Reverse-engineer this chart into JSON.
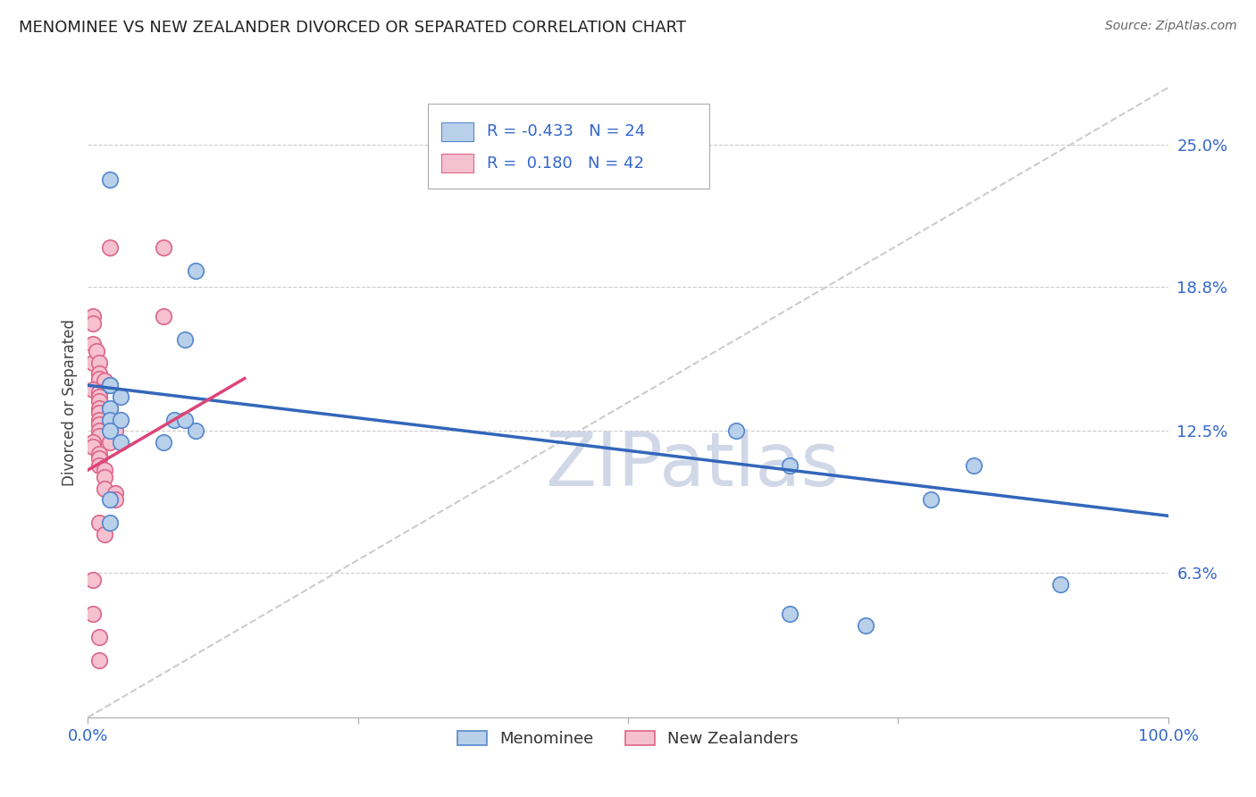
{
  "title": "MENOMINEE VS NEW ZEALANDER DIVORCED OR SEPARATED CORRELATION CHART",
  "source": "Source: ZipAtlas.com",
  "ylabel": "Divorced or Separated",
  "xlim": [
    0.0,
    1.0
  ],
  "ylim": [
    0.0,
    0.275
  ],
  "yticks": [
    0.0,
    0.063,
    0.125,
    0.188,
    0.25
  ],
  "ytick_labels": [
    "",
    "6.3%",
    "12.5%",
    "18.8%",
    "25.0%"
  ],
  "grid_color": "#cccccc",
  "background_color": "#ffffff",
  "watermark": "ZIPatlas",
  "watermark_color": "#d0d8e8",
  "series1_name": "Menominee",
  "series1_color": "#b8d0ea",
  "series1_edge_color": "#5588cc",
  "series1_R": -0.433,
  "series1_N": 24,
  "series1_line_color": "#3366bb",
  "series2_name": "New Zealanders",
  "series2_color": "#f5c0d0",
  "series2_edge_color": "#dd6688",
  "series2_R": 0.18,
  "series2_N": 42,
  "series2_line_color": "#dd4477",
  "menominee_x": [
    0.02,
    0.1,
    0.09,
    0.02,
    0.02,
    0.03,
    0.02,
    0.02,
    0.03,
    0.02,
    0.03,
    0.08,
    0.07,
    0.1,
    0.09,
    0.02,
    0.02,
    0.6,
    0.65,
    0.78,
    0.82,
    0.9,
    0.65,
    0.72
  ],
  "menominee_y": [
    0.235,
    0.195,
    0.165,
    0.145,
    0.145,
    0.14,
    0.135,
    0.13,
    0.13,
    0.125,
    0.12,
    0.13,
    0.12,
    0.125,
    0.13,
    0.095,
    0.085,
    0.125,
    0.11,
    0.095,
    0.11,
    0.058,
    0.045,
    0.04
  ],
  "nz_x": [
    0.005,
    0.02,
    0.07,
    0.07,
    0.005,
    0.005,
    0.005,
    0.008,
    0.01,
    0.01,
    0.01,
    0.015,
    0.005,
    0.01,
    0.01,
    0.01,
    0.01,
    0.01,
    0.01,
    0.01,
    0.01,
    0.01,
    0.005,
    0.005,
    0.02,
    0.02,
    0.025,
    0.02,
    0.01,
    0.01,
    0.01,
    0.015,
    0.015,
    0.015,
    0.025,
    0.025,
    0.01,
    0.015,
    0.005,
    0.005,
    0.01,
    0.01
  ],
  "nz_y": [
    0.155,
    0.205,
    0.175,
    0.205,
    0.175,
    0.172,
    0.163,
    0.16,
    0.155,
    0.15,
    0.148,
    0.147,
    0.143,
    0.142,
    0.14,
    0.138,
    0.135,
    0.133,
    0.13,
    0.128,
    0.125,
    0.123,
    0.12,
    0.118,
    0.135,
    0.13,
    0.125,
    0.12,
    0.115,
    0.113,
    0.11,
    0.108,
    0.105,
    0.1,
    0.098,
    0.095,
    0.085,
    0.08,
    0.06,
    0.045,
    0.035,
    0.025
  ],
  "blue_line_x0": 0.0,
  "blue_line_y0": 0.145,
  "blue_line_x1": 1.0,
  "blue_line_y1": 0.088,
  "pink_line_x0": 0.0,
  "pink_line_y0": 0.108,
  "pink_line_x1": 0.145,
  "pink_line_y1": 0.148,
  "diag_line_x0": 0.0,
  "diag_line_y0": 0.0,
  "diag_line_x1": 1.0,
  "diag_line_y1": 0.275
}
